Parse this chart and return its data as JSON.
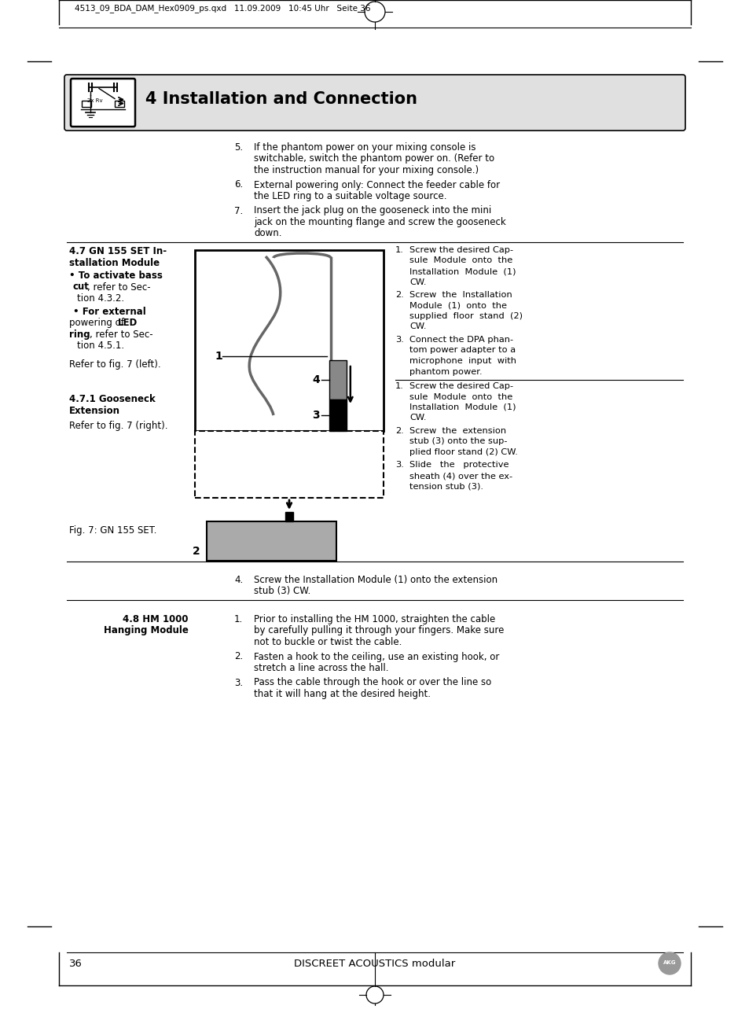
{
  "page_header": "4513_09_BDA_DAM_Hex0909_ps.qxd   11.09.2009   10:45 Uhr   Seite 36",
  "section_title": "4 Installation and Connection",
  "bg_header_color": "#e8e8e8",
  "page_number": "36",
  "footer_text": "DISCREET ACOUSTICS modular",
  "item5_num": "5.",
  "item5_lines": [
    "If the phantom power on your mixing console is",
    "switchable, switch the phantom power on. (Refer to",
    "the instruction manual for your mixing console.)"
  ],
  "item6_num": "6.",
  "item6_lines": [
    "External powering only: Connect the feeder cable for",
    "the LED ring to a suitable voltage source."
  ],
  "item7_num": "7.",
  "item7_lines": [
    "Insert the jack plug on the gooseneck into the mini",
    "jack on the mounting flange and screw the gooseneck",
    "down."
  ],
  "s47_line1": "4.7 GN 155 SET In-",
  "s47_line2": "stallation Module",
  "s47_b1": "• To activate bass",
  "s47_b1b": "cut",
  "s47_b1c": ", refer to Sec-",
  "s47_b1d": "tion 4.3.2.",
  "s47_b2a": "• For external",
  "s47_b2b": "powering of ",
  "s47_b2c": "LED",
  "s47_b2d": "ring",
  "s47_b2e": ", refer to Sec-",
  "s47_b2f": "tion 4.5.1.",
  "s47_ref": "Refer to fig. 7 (left).",
  "s471_line1": "4.7.1 Gooseneck",
  "s471_line2": "Extension",
  "s471_ref": "Refer to fig. 7 (right).",
  "fig_cap": "Fig. 7: GN 155 SET.",
  "r1_1": "1.",
  "r1_1t": [
    "Screw the desired Cap-",
    "sule  Module  onto  the",
    "Installation  Module  (1)",
    "CW."
  ],
  "r1_2": "2.",
  "r1_2t": [
    "Screw  the  Installation",
    "Module  (1)  onto  the",
    "supplied  floor  stand  (2)",
    "CW."
  ],
  "r1_3": "3.",
  "r1_3t": [
    "Connect the DPA phan-",
    "tom power adapter to a",
    "microphone  input  with",
    "phantom power."
  ],
  "r2_1": "1.",
  "r2_1t": [
    "Screw the desired Cap-",
    "sule  Module  onto  the",
    "Installation  Module  (1)",
    "CW."
  ],
  "r2_2": "2.",
  "r2_2t": [
    "Screw  the  extension",
    "stub (3) onto the sup-",
    "plied floor stand (2) CW."
  ],
  "r2_3": "3.",
  "r2_3t": [
    "Slide   the   protective",
    "sheath (4) over the ex-",
    "tension stub (3)."
  ],
  "step4_num": "4.",
  "step4_lines": [
    "Screw the Installation Module (1) onto the extension",
    "stub (3) CW."
  ],
  "s48_line1": "4.8 HM 1000",
  "s48_line2": "Hanging Module",
  "s48_1": "1.",
  "s48_1t": [
    "Prior to installing the HM 1000, straighten the cable",
    "by carefully pulling it through your fingers. Make sure",
    "not to buckle or twist the cable."
  ],
  "s48_2": "2.",
  "s48_2t": [
    "Fasten a hook to the ceiling, use an existing hook, or",
    "stretch a line across the hall."
  ],
  "s48_3": "3.",
  "s48_3t": [
    "Pass the cable through the hook or over the line so",
    "that it will hang at the desired height."
  ]
}
